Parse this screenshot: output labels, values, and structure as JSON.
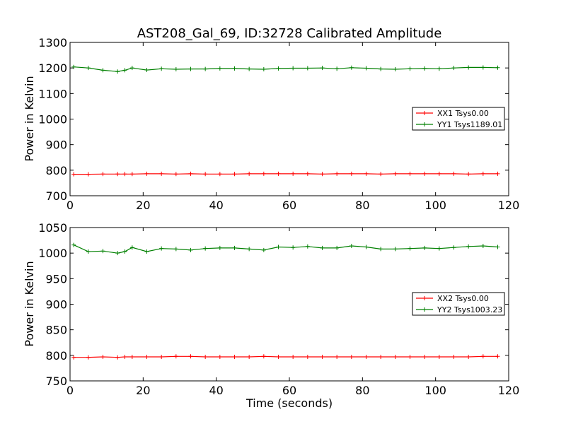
{
  "figure": {
    "title": "AST208_Gal_69, ID:32728 Calibrated Amplitude",
    "xlabel": "Time (seconds)"
  },
  "chart_data": [
    {
      "type": "line",
      "title": "AST208_Gal_69, ID:32728 Calibrated Amplitude",
      "xlabel": "",
      "ylabel": "Power in Kelvin",
      "xlim": [
        0,
        120
      ],
      "ylim": [
        700,
        1300
      ],
      "xticks": [
        "0",
        "20",
        "40",
        "60",
        "80",
        "100",
        "120"
      ],
      "yticks": [
        "700",
        "800",
        "900",
        "1000",
        "1100",
        "1200",
        "1300"
      ],
      "grid": false,
      "legend_position": "center-right",
      "x": [
        1,
        5,
        9,
        13,
        15,
        17,
        21,
        25,
        29,
        33,
        37,
        41,
        45,
        49,
        53,
        57,
        61,
        65,
        69,
        73,
        77,
        81,
        85,
        89,
        93,
        97,
        101,
        105,
        109,
        113,
        117
      ],
      "series": [
        {
          "name": "XX1 Tsys0.00",
          "color": "#ff0000",
          "values": [
            784,
            784,
            785,
            785,
            785,
            785,
            786,
            786,
            785,
            786,
            785,
            785,
            785,
            786,
            786,
            786,
            786,
            786,
            785,
            786,
            786,
            786,
            785,
            786,
            786,
            786,
            786,
            786,
            785,
            786,
            786
          ]
        },
        {
          "name": "YY1 Tsys1189.01",
          "color": "#008000",
          "values": [
            1204,
            1200,
            1191,
            1186,
            1191,
            1200,
            1192,
            1197,
            1195,
            1196,
            1196,
            1198,
            1198,
            1196,
            1195,
            1198,
            1199,
            1199,
            1200,
            1197,
            1201,
            1199,
            1196,
            1195,
            1197,
            1198,
            1197,
            1200,
            1202,
            1202,
            1201
          ]
        }
      ]
    },
    {
      "type": "line",
      "title": "",
      "xlabel": "Time (seconds)",
      "ylabel": "Power in Kelvin",
      "xlim": [
        0,
        120
      ],
      "ylim": [
        750,
        1050
      ],
      "xticks": [
        "0",
        "20",
        "40",
        "60",
        "80",
        "100",
        "120"
      ],
      "yticks": [
        "750",
        "800",
        "850",
        "900",
        "950",
        "1000",
        "1050"
      ],
      "grid": false,
      "legend_position": "center-right",
      "x": [
        1,
        5,
        9,
        13,
        15,
        17,
        21,
        25,
        29,
        33,
        37,
        41,
        45,
        49,
        53,
        57,
        61,
        65,
        69,
        73,
        77,
        81,
        85,
        89,
        93,
        97,
        101,
        105,
        109,
        113,
        117
      ],
      "series": [
        {
          "name": "XX2 Tsys0.00",
          "color": "#ff0000",
          "values": [
            796,
            796,
            797,
            796,
            797,
            797,
            797,
            797,
            798,
            798,
            797,
            797,
            797,
            797,
            798,
            797,
            797,
            797,
            797,
            797,
            797,
            797,
            797,
            797,
            797,
            797,
            797,
            797,
            797,
            798,
            798
          ]
        },
        {
          "name": "YY2 Tsys1003.23",
          "color": "#008000",
          "values": [
            1016,
            1003,
            1004,
            1000,
            1003,
            1011,
            1003,
            1009,
            1008,
            1006,
            1009,
            1010,
            1010,
            1008,
            1006,
            1012,
            1011,
            1013,
            1010,
            1010,
            1014,
            1012,
            1008,
            1008,
            1009,
            1010,
            1009,
            1011,
            1013,
            1014,
            1012
          ]
        }
      ]
    }
  ]
}
